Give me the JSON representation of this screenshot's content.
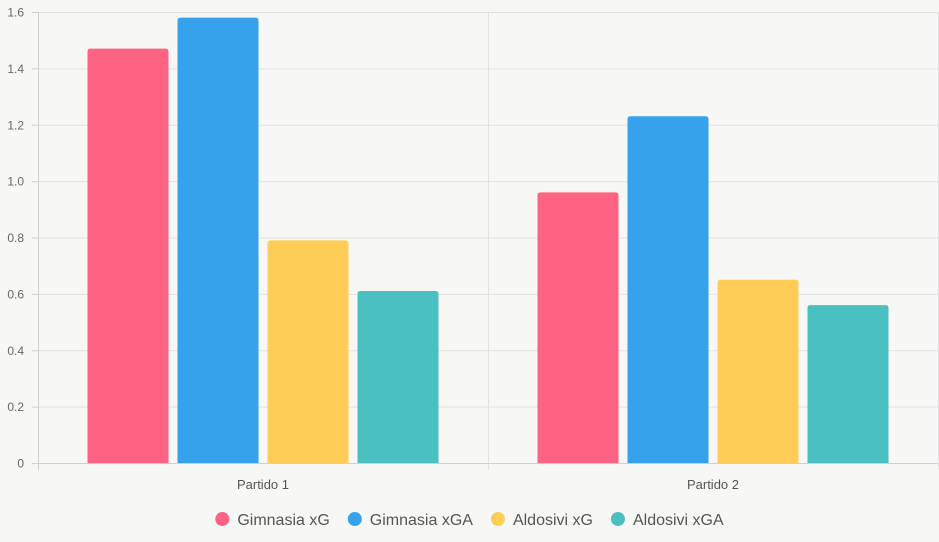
{
  "chart_data": {
    "type": "bar",
    "categories": [
      "Partido 1",
      "Partido 2"
    ],
    "series": [
      {
        "name": "Gimnasia xG",
        "color": "#ff6384",
        "values": [
          1.47,
          0.96
        ]
      },
      {
        "name": "Gimnasia xGA",
        "color": "#36a2eb",
        "values": [
          1.58,
          1.23
        ]
      },
      {
        "name": "Aldosivi xG",
        "color": "#ffcd56",
        "values": [
          0.79,
          0.65
        ]
      },
      {
        "name": "Aldosivi xGA",
        "color": "#4bc0c0",
        "values": [
          0.61,
          0.56
        ]
      }
    ],
    "ylim": [
      0,
      1.6
    ],
    "y_ticks": [
      "0",
      "0.2",
      "0.4",
      "0.6",
      "0.8",
      "1.0",
      "1.2",
      "1.4",
      "1.6"
    ],
    "grid": true,
    "legend_position": "bottom"
  }
}
